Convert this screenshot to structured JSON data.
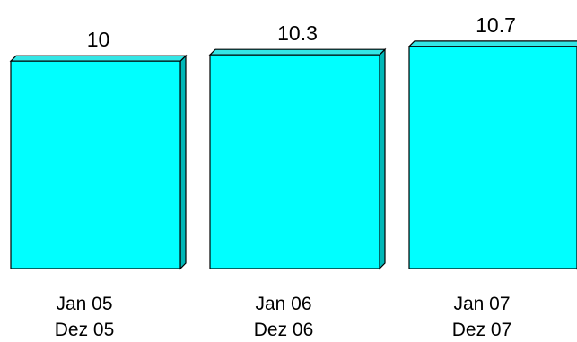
{
  "chart_data": {
    "type": "bar",
    "style": "3d",
    "categories": [
      [
        "Jan 05",
        "Dez 05"
      ],
      [
        "Jan 06",
        "Dez 06"
      ],
      [
        "Jan 07",
        "Dez 07"
      ]
    ],
    "values": [
      10,
      10.3,
      10.7
    ],
    "data_labels": [
      "10",
      "10.3",
      "10.7"
    ],
    "colors": {
      "bar_front": "#00FFFF",
      "bar_side": "#00B7B7",
      "bar_top": "#33E6E6",
      "outline": "#000000",
      "background": "#FFFFFF"
    },
    "grid": false,
    "legend": "none"
  }
}
